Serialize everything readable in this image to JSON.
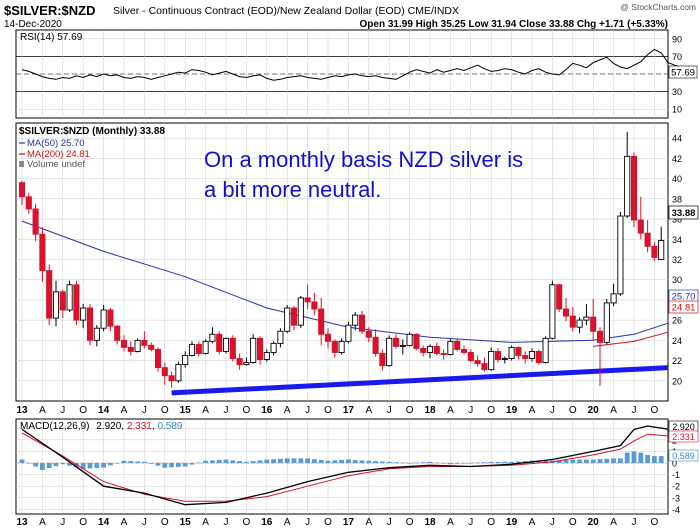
{
  "header": {
    "symbol": "$SILVER:$NZD",
    "description": "Silver - Continuous Contract (EOD)/New Zealand Dollar (EOD)  CME/INDX",
    "date": "14-Dec-2020",
    "ohlc_text": "Open 31.99  High 35.25  Low 31.94  Close 33.88  Chg +1.71 (+5.33%)",
    "watermark": "@ StockCharts.com"
  },
  "colors": {
    "up": "#000000",
    "down": "#d8132b",
    "ma50": "#2233aa",
    "ma200": "#cc1111",
    "trend": "#1a1aee",
    "annotation": "#1010cc",
    "macd_hist": "#5b9bd5",
    "grid": "#cccccc"
  },
  "rsi": {
    "label": "RSI(14) 57.69",
    "current_tag": "57.69",
    "ticks": [
      "90",
      "70",
      "50",
      "30",
      "10"
    ],
    "levels": [
      70,
      30
    ],
    "values": [
      55,
      53,
      50,
      47,
      45,
      44,
      46,
      45,
      48,
      46,
      49,
      47,
      50,
      48,
      49,
      46,
      45,
      47,
      46,
      44,
      46,
      48,
      50,
      52,
      51,
      55,
      54,
      52,
      49,
      51,
      53,
      50,
      47,
      46,
      48,
      49,
      45,
      43,
      44,
      46,
      47,
      48,
      46,
      45,
      44,
      46,
      48,
      47,
      49,
      50,
      48,
      47,
      48,
      46,
      45,
      44,
      48,
      52,
      55,
      53,
      51,
      55,
      52,
      54,
      56,
      54,
      57,
      60,
      56,
      53,
      54,
      56,
      55,
      52,
      50,
      54,
      56,
      52,
      50,
      49,
      55,
      62,
      60,
      57,
      63,
      66,
      69,
      62,
      58,
      56,
      60,
      64,
      72,
      78,
      74,
      63,
      60,
      57.69
    ]
  },
  "price": {
    "label": "$SILVER:$NZD (Monthly) 33.88",
    "ma50_label": "MA(50) 25.70",
    "ma200_label": "MA(200) 24.81",
    "volume_label": "Volume undef",
    "annotation_line1": "On a monthly basis NZD silver is",
    "annotation_line2": "a bit more neutral.",
    "current_tag": "33.88",
    "ma50_tag": "25.70",
    "ma200_tag": "24.81",
    "ticks": [
      "44",
      "42",
      "40",
      "38",
      "36",
      "34",
      "32",
      "30",
      "28",
      "26",
      "24",
      "22",
      "20"
    ]
  },
  "macd": {
    "label_prefix": "MACD(12,26,9)",
    "macd_value": "2.920",
    "signal_value": "2.331",
    "hist_value": "0.589",
    "ticks": [
      "3",
      "2",
      "1",
      "0",
      "-1",
      "-2",
      "-3",
      "-4"
    ]
  },
  "x_axis": {
    "labels": [
      {
        "t": "13",
        "bold": true,
        "m": 0
      },
      {
        "t": "A",
        "bold": false,
        "m": 3
      },
      {
        "t": "J",
        "bold": false,
        "m": 6
      },
      {
        "t": "O",
        "bold": false,
        "m": 9
      },
      {
        "t": "14",
        "bold": true,
        "m": 12
      },
      {
        "t": "A",
        "bold": false,
        "m": 15
      },
      {
        "t": "J",
        "bold": false,
        "m": 18
      },
      {
        "t": "O",
        "bold": false,
        "m": 21
      },
      {
        "t": "15",
        "bold": true,
        "m": 24
      },
      {
        "t": "A",
        "bold": false,
        "m": 27
      },
      {
        "t": "J",
        "bold": false,
        "m": 30
      },
      {
        "t": "O",
        "bold": false,
        "m": 33
      },
      {
        "t": "16",
        "bold": true,
        "m": 36
      },
      {
        "t": "A",
        "bold": false,
        "m": 39
      },
      {
        "t": "J",
        "bold": false,
        "m": 42
      },
      {
        "t": "O",
        "bold": false,
        "m": 45
      },
      {
        "t": "17",
        "bold": true,
        "m": 48
      },
      {
        "t": "A",
        "bold": false,
        "m": 51
      },
      {
        "t": "J",
        "bold": false,
        "m": 54
      },
      {
        "t": "O",
        "bold": false,
        "m": 57
      },
      {
        "t": "18",
        "bold": true,
        "m": 60
      },
      {
        "t": "A",
        "bold": false,
        "m": 63
      },
      {
        "t": "J",
        "bold": false,
        "m": 66
      },
      {
        "t": "O",
        "bold": false,
        "m": 69
      },
      {
        "t": "19",
        "bold": true,
        "m": 72
      },
      {
        "t": "A",
        "bold": false,
        "m": 75
      },
      {
        "t": "J",
        "bold": false,
        "m": 78
      },
      {
        "t": "O",
        "bold": false,
        "m": 81
      },
      {
        "t": "20",
        "bold": true,
        "m": 84
      },
      {
        "t": "A",
        "bold": false,
        "m": 87
      },
      {
        "t": "J",
        "bold": false,
        "m": 90
      },
      {
        "t": "O",
        "bold": false,
        "m": 93
      }
    ]
  },
  "chart_data": {
    "type": "line",
    "title": "$SILVER:$NZD (Monthly) 33.88",
    "x_range": [
      "2013-01",
      "2020-12"
    ],
    "ylim": [
      18,
      45.5
    ],
    "trendline": {
      "from": {
        "date": "2014-11",
        "value": 18.8
      },
      "to": {
        "date": "2020-12",
        "value": 21.3
      }
    },
    "candles": [
      [
        39.6,
        39.8,
        37.4,
        38.2
      ],
      [
        38.2,
        38.6,
        36.5,
        37.0
      ],
      [
        37.0,
        37.5,
        33.8,
        34.5
      ],
      [
        34.5,
        35.2,
        29.8,
        30.9
      ],
      [
        30.9,
        31.5,
        25.5,
        26.2
      ],
      [
        26.2,
        29.9,
        25.4,
        28.8
      ],
      [
        28.8,
        29.0,
        26.2,
        27.0
      ],
      [
        27.0,
        29.9,
        26.8,
        29.5
      ],
      [
        29.5,
        29.9,
        25.5,
        26.0
      ],
      [
        26.0,
        27.6,
        25.2,
        27.2
      ],
      [
        27.2,
        27.6,
        23.5,
        24.0
      ],
      [
        24.0,
        25.5,
        23.4,
        25.2
      ],
      [
        25.2,
        27.5,
        24.9,
        27.0
      ],
      [
        27.0,
        27.2,
        24.9,
        25.4
      ],
      [
        25.4,
        25.5,
        23.6,
        24.0
      ],
      [
        24.0,
        24.5,
        22.9,
        23.3
      ],
      [
        23.3,
        23.9,
        22.5,
        22.9
      ],
      [
        22.9,
        24.2,
        22.8,
        24.0
      ],
      [
        24.0,
        24.9,
        23.2,
        23.5
      ],
      [
        23.5,
        23.8,
        22.9,
        23.1
      ],
      [
        23.1,
        23.3,
        20.9,
        21.3
      ],
      [
        21.3,
        21.8,
        19.6,
        20.5
      ],
      [
        20.5,
        20.9,
        19.3,
        20.0
      ],
      [
        20.0,
        21.9,
        19.8,
        21.6
      ],
      [
        21.6,
        22.9,
        21.3,
        22.5
      ],
      [
        22.5,
        23.9,
        22.4,
        23.6
      ],
      [
        23.6,
        23.9,
        22.4,
        22.7
      ],
      [
        22.7,
        24.1,
        22.6,
        23.9
      ],
      [
        23.9,
        25.3,
        23.7,
        24.6
      ],
      [
        24.6,
        24.9,
        22.6,
        22.9
      ],
      [
        22.9,
        24.3,
        22.7,
        24.2
      ],
      [
        24.2,
        24.5,
        21.9,
        22.2
      ],
      [
        22.2,
        22.7,
        21.1,
        21.6
      ],
      [
        21.6,
        22.3,
        21.5,
        21.8
      ],
      [
        21.8,
        24.6,
        21.7,
        24.2
      ],
      [
        24.2,
        24.4,
        21.6,
        22.1
      ],
      [
        22.1,
        23.1,
        21.9,
        22.8
      ],
      [
        22.8,
        23.9,
        22.5,
        23.7
      ],
      [
        23.7,
        25.2,
        23.3,
        24.9
      ],
      [
        24.9,
        27.5,
        24.7,
        27.2
      ],
      [
        27.2,
        27.4,
        25.0,
        25.5
      ],
      [
        25.5,
        28.4,
        25.2,
        28.2
      ],
      [
        28.2,
        29.5,
        27.1,
        27.8
      ],
      [
        27.8,
        28.7,
        26.5,
        27.1
      ],
      [
        27.1,
        28.2,
        23.5,
        24.6
      ],
      [
        24.6,
        25.2,
        23.2,
        23.9
      ],
      [
        23.9,
        24.1,
        22.3,
        22.8
      ],
      [
        22.8,
        24.2,
        22.6,
        23.9
      ],
      [
        23.9,
        25.8,
        23.7,
        25.5
      ],
      [
        25.5,
        26.8,
        25.0,
        26.5
      ],
      [
        26.5,
        26.9,
        24.6,
        24.9
      ],
      [
        24.9,
        25.3,
        23.8,
        24.3
      ],
      [
        24.3,
        25.1,
        22.4,
        22.7
      ],
      [
        22.7,
        23.1,
        21.0,
        21.5
      ],
      [
        21.5,
        24.5,
        21.4,
        24.2
      ],
      [
        24.2,
        24.6,
        23.2,
        23.4
      ],
      [
        23.4,
        24.1,
        22.6,
        23.5
      ],
      [
        23.5,
        24.8,
        23.4,
        24.6
      ],
      [
        24.6,
        24.7,
        23.0,
        23.2
      ],
      [
        23.2,
        23.5,
        22.4,
        22.8
      ],
      [
        22.8,
        23.6,
        22.2,
        23.4
      ],
      [
        23.4,
        23.8,
        22.5,
        22.7
      ],
      [
        22.7,
        23.1,
        22.1,
        22.6
      ],
      [
        22.6,
        24.1,
        22.5,
        23.9
      ],
      [
        23.9,
        24.2,
        22.9,
        23.1
      ],
      [
        23.1,
        23.5,
        22.6,
        22.8
      ],
      [
        22.8,
        23.1,
        21.8,
        22.0
      ],
      [
        22.0,
        22.5,
        21.4,
        21.7
      ],
      [
        21.7,
        22.3,
        20.9,
        21.1
      ],
      [
        21.1,
        23.3,
        21.0,
        22.9
      ],
      [
        22.9,
        23.2,
        21.8,
        22.1
      ],
      [
        22.1,
        22.4,
        21.7,
        22.2
      ],
      [
        22.2,
        23.5,
        22.0,
        23.3
      ],
      [
        23.3,
        23.4,
        22.1,
        22.5
      ],
      [
        22.5,
        22.9,
        21.7,
        22.2
      ],
      [
        22.2,
        23.2,
        21.9,
        22.9
      ],
      [
        22.9,
        23.1,
        21.6,
        21.8
      ],
      [
        21.8,
        24.4,
        21.7,
        24.2
      ],
      [
        24.2,
        29.9,
        24.1,
        29.5
      ],
      [
        29.5,
        29.6,
        26.8,
        27.1
      ],
      [
        27.1,
        28.2,
        25.9,
        26.4
      ],
      [
        26.4,
        27.3,
        24.9,
        25.3
      ],
      [
        25.3,
        26.3,
        24.7,
        26.0
      ],
      [
        26.0,
        27.6,
        25.5,
        26.3
      ],
      [
        26.3,
        28.1,
        24.0,
        24.9
      ],
      [
        24.9,
        25.3,
        19.5,
        23.8
      ],
      [
        23.8,
        28.1,
        23.6,
        27.7
      ],
      [
        27.7,
        29.6,
        27.4,
        28.6
      ],
      [
        28.6,
        36.7,
        28.4,
        36.3
      ],
      [
        36.3,
        44.6,
        36.1,
        42.2
      ],
      [
        42.2,
        42.6,
        35.2,
        35.9
      ],
      [
        35.9,
        38.2,
        34.0,
        34.6
      ],
      [
        34.6,
        35.9,
        32.7,
        33.3
      ],
      [
        33.3,
        33.7,
        31.9,
        32.2
      ],
      [
        31.99,
        35.25,
        31.94,
        33.88
      ]
    ],
    "series": [
      {
        "name": "MA(50)",
        "points": [
          [
            0,
            35.8
          ],
          [
            12,
            32.8
          ],
          [
            24,
            30.3
          ],
          [
            36,
            27.2
          ],
          [
            48,
            25.3
          ],
          [
            60,
            24.3
          ],
          [
            72,
            23.8
          ],
          [
            84,
            24.0
          ],
          [
            90,
            24.6
          ],
          [
            95,
            25.7
          ]
        ]
      },
      {
        "name": "MA(200)",
        "points": [
          [
            84,
            23.4
          ],
          [
            90,
            23.9
          ],
          [
            95,
            24.81
          ]
        ]
      },
      {
        "name": "MACD",
        "points": [
          [
            0,
            2.9
          ],
          [
            6,
            0.5
          ],
          [
            12,
            -2.0
          ],
          [
            18,
            -2.6
          ],
          [
            24,
            -3.6
          ],
          [
            30,
            -3.4
          ],
          [
            36,
            -2.6
          ],
          [
            42,
            -1.6
          ],
          [
            48,
            -0.8
          ],
          [
            54,
            -0.4
          ],
          [
            60,
            -0.2
          ],
          [
            66,
            -0.3
          ],
          [
            72,
            -0.1
          ],
          [
            78,
            0.3
          ],
          [
            84,
            1.0
          ],
          [
            88,
            1.5
          ],
          [
            90,
            2.9
          ],
          [
            92,
            3.2
          ],
          [
            95,
            2.92
          ]
        ]
      },
      {
        "name": "Signal",
        "points": [
          [
            0,
            2.6
          ],
          [
            6,
            0.6
          ],
          [
            12,
            -1.6
          ],
          [
            18,
            -2.7
          ],
          [
            24,
            -3.3
          ],
          [
            30,
            -3.3
          ],
          [
            36,
            -2.9
          ],
          [
            42,
            -2.0
          ],
          [
            48,
            -1.1
          ],
          [
            54,
            -0.5
          ],
          [
            60,
            -0.3
          ],
          [
            66,
            -0.3
          ],
          [
            72,
            -0.2
          ],
          [
            78,
            0.1
          ],
          [
            84,
            0.7
          ],
          [
            88,
            1.2
          ],
          [
            90,
            1.9
          ],
          [
            92,
            2.5
          ],
          [
            95,
            2.331
          ]
        ]
      },
      {
        "name": "Histogram",
        "points": [
          [
            0,
            0.3
          ],
          [
            3,
            -0.6
          ],
          [
            6,
            -0.1
          ],
          [
            9,
            -0.5
          ],
          [
            12,
            -0.4
          ],
          [
            15,
            0.2
          ],
          [
            18,
            0.1
          ],
          [
            21,
            -0.4
          ],
          [
            24,
            -0.3
          ],
          [
            27,
            0.2
          ],
          [
            30,
            0.3
          ],
          [
            33,
            0.1
          ],
          [
            36,
            0.3
          ],
          [
            39,
            0.4
          ],
          [
            42,
            0.4
          ],
          [
            45,
            0.2
          ],
          [
            48,
            0.3
          ],
          [
            51,
            0.2
          ],
          [
            54,
            0.1
          ],
          [
            57,
            0.0
          ],
          [
            60,
            0.1
          ],
          [
            63,
            -0.1
          ],
          [
            66,
            0.0
          ],
          [
            69,
            0.1
          ],
          [
            72,
            0.1
          ],
          [
            75,
            0.2
          ],
          [
            78,
            0.2
          ],
          [
            81,
            0.3
          ],
          [
            84,
            0.3
          ],
          [
            87,
            0.4
          ],
          [
            88,
            0.4
          ],
          [
            89,
            0.9
          ],
          [
            90,
            1.0
          ],
          [
            91,
            0.9
          ],
          [
            92,
            0.7
          ],
          [
            93,
            0.6
          ],
          [
            94,
            0.6
          ],
          [
            95,
            0.589
          ]
        ]
      }
    ]
  }
}
